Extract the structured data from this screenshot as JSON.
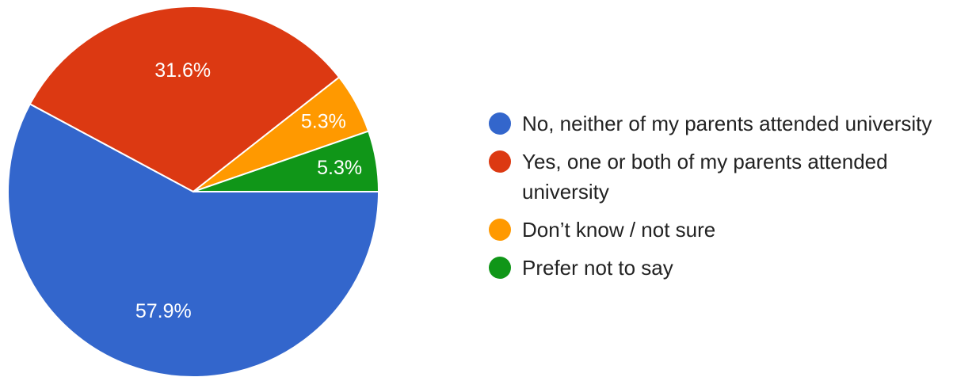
{
  "chart_data": {
    "type": "pie",
    "categories": [
      "No, neither of my parents attended university",
      "Yes, one or both of my parents attended university",
      "Don’t know / not sure",
      "Prefer not to say"
    ],
    "values": [
      57.9,
      31.6,
      5.3,
      5.3
    ],
    "value_labels": [
      "57.9%",
      "31.6%",
      "5.3%",
      "5.3%"
    ],
    "colors": [
      "#3366cc",
      "#dc3912",
      "#ff9900",
      "#109618"
    ],
    "legend_position": "right"
  }
}
